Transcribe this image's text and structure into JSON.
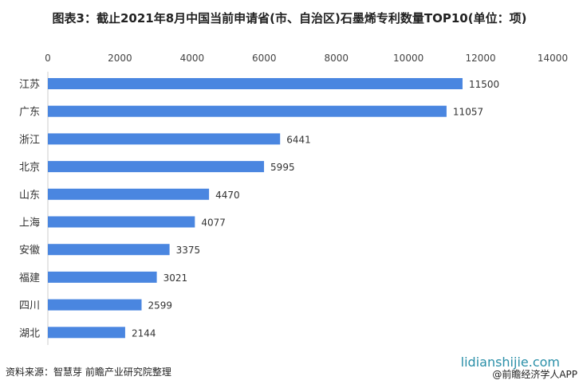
{
  "title": "图表3：截止2021年8月中国当前申请省(市、自治区)石墨烯专利数量TOP10(单位：项)",
  "source": "资料来源：智慧芽 前瞻产业研究院整理",
  "watermark_site": "lidianshijie.com",
  "watermark_app": "@前瞻经济学人APP",
  "chart_data": {
    "type": "bar",
    "orientation": "horizontal",
    "title": "图表3：截止2021年8月中国当前申请省(市、自治区)石墨烯专利数量TOP10(单位：项)",
    "categories": [
      "江苏",
      "广东",
      "浙江",
      "北京",
      "山东",
      "上海",
      "安徽",
      "福建",
      "四川",
      "湖北"
    ],
    "values": [
      11500,
      11057,
      6441,
      5995,
      4470,
      4077,
      3375,
      3021,
      2599,
      2144
    ],
    "xlim": [
      0,
      14000
    ],
    "xticks": [
      0,
      2000,
      4000,
      6000,
      8000,
      10000,
      12000,
      14000
    ],
    "axis_position": "top",
    "grid": false,
    "bar_color": "#4a86e0"
  }
}
